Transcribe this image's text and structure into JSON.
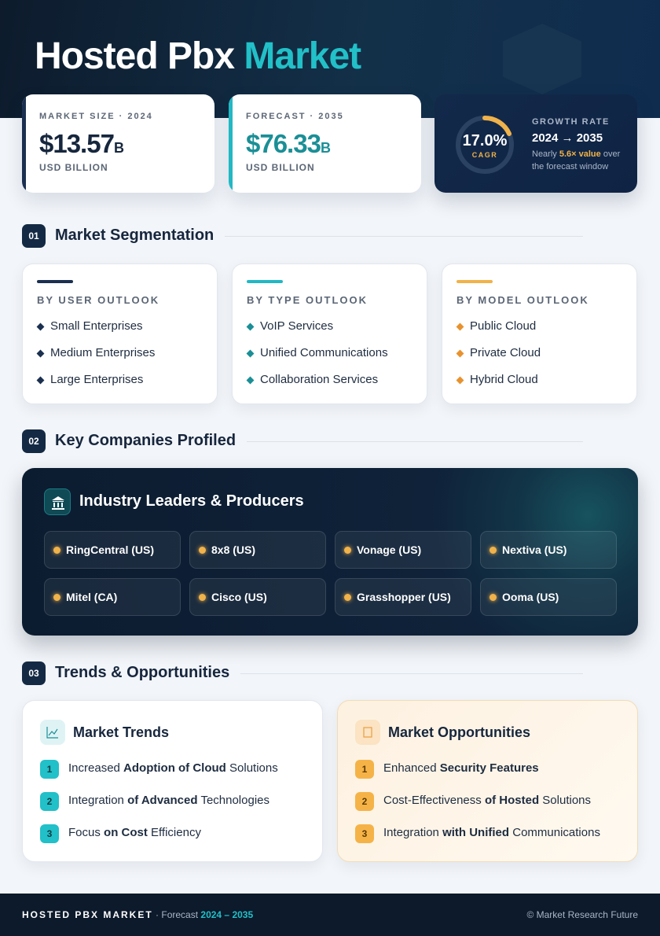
{
  "header": {
    "title": "Hosted Pbx",
    "title_accent": "Market"
  },
  "stats": [
    {
      "label": "MARKET SIZE · 2024",
      "value": "$13.57",
      "suffix": "B",
      "unit": "USD BILLION"
    },
    {
      "label": "FORECAST · 2035",
      "value": "$76.33",
      "suffix": "B",
      "unit": "USD BILLION"
    }
  ],
  "growth": {
    "ring_value": "17.0%",
    "ring_label": "CAGR",
    "label": "GROWTH RATE",
    "range": "2024 → 2035",
    "note": [
      {
        "text": "Nearly"
      },
      {
        "text": "5.6× value",
        "highlight": true
      },
      {
        "text": "over the forecast window"
      }
    ]
  },
  "sections": [
    {
      "num": "01",
      "title": "Market Segmentation"
    },
    {
      "num": "02",
      "title": "Key Companies Profiled"
    },
    {
      "num": "03",
      "title": "Trends & Opportunities"
    }
  ],
  "segmentation": [
    {
      "heading": "BY USER OUTLOOK",
      "items": [
        "Small Enterprises",
        "Medium Enterprises",
        "Large Enterprises"
      ]
    },
    {
      "heading": "BY TYPE OUTLOOK",
      "items": [
        "VoIP Services",
        "Unified Communications",
        "Collaboration Services"
      ]
    },
    {
      "heading": "BY MODEL OUTLOOK",
      "items": [
        "Public Cloud",
        "Private Cloud",
        "Hybrid Cloud"
      ]
    }
  ],
  "companies": {
    "title": "Industry Leaders & Producers",
    "items": [
      "RingCentral (US)",
      "8x8 (US)",
      "Vonage (US)",
      "Nextiva (US)",
      "Mitel (CA)",
      "Cisco (US)",
      "Grasshopper (US)",
      "Ooma (US)"
    ]
  },
  "trends": {
    "title": "Market Trends",
    "items": [
      {
        "num": "1",
        "segments": [
          {
            "text": "Increased"
          },
          {
            "text": "Adoption of Cloud",
            "bold": true
          },
          {
            "text": "Solutions"
          }
        ]
      },
      {
        "num": "2",
        "segments": [
          {
            "text": "Integration"
          },
          {
            "text": "of Advanced",
            "bold": true
          },
          {
            "text": "Technologies"
          }
        ]
      },
      {
        "num": "3",
        "segments": [
          {
            "text": "Focus"
          },
          {
            "text": "on Cost",
            "bold": true
          },
          {
            "text": "Efficiency"
          }
        ]
      }
    ]
  },
  "opportunities": {
    "title": "Market Opportunities",
    "items": [
      {
        "num": "1",
        "segments": [
          {
            "text": "Enhanced"
          },
          {
            "text": "Security Features",
            "bold": true
          }
        ]
      },
      {
        "num": "2",
        "segments": [
          {
            "text": "Cost-Effectiveness"
          },
          {
            "text": "of Hosted",
            "bold": true
          },
          {
            "text": "Solutions"
          }
        ]
      },
      {
        "num": "3",
        "segments": [
          {
            "text": "Integration"
          },
          {
            "text": "with Unified",
            "bold": true
          },
          {
            "text": "Communications"
          }
        ]
      }
    ]
  },
  "footer": {
    "brand": "HOSTED PBX MARKET",
    "separator": "·",
    "label": "Forecast",
    "range": "2024 – 2035",
    "credit": "© Market Research Future"
  }
}
